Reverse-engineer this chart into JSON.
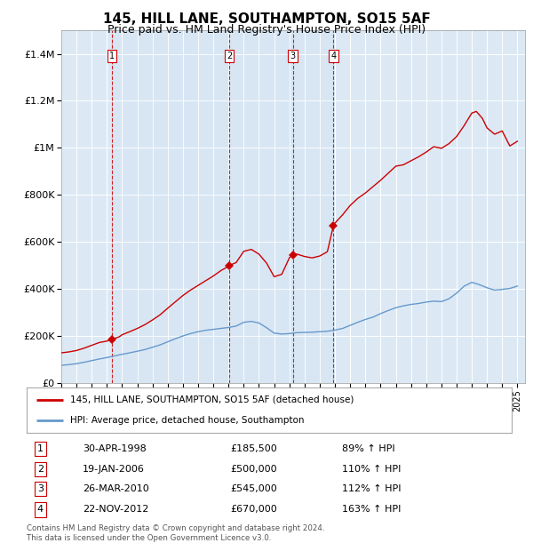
{
  "title": "145, HILL LANE, SOUTHAMPTON, SO15 5AF",
  "subtitle": "Price paid vs. HM Land Registry's House Price Index (HPI)",
  "title_fontsize": 11,
  "subtitle_fontsize": 9,
  "background_color": "#ffffff",
  "plot_bg_color": "#dce9f5",
  "grid_color": "#ffffff",
  "red_line_color": "#cc0000",
  "blue_line_color": "#6699cc",
  "sale_marker_color": "#cc0000",
  "dashed_line_color": "#cc0000",
  "ylim": [
    0,
    1500000
  ],
  "yticks": [
    0,
    200000,
    400000,
    600000,
    800000,
    1000000,
    1200000,
    1400000
  ],
  "ytick_labels": [
    "£0",
    "£200K",
    "£400K",
    "£600K",
    "£800K",
    "£1M",
    "£1.2M",
    "£1.4M"
  ],
  "sales": [
    {
      "num": 1,
      "date": "30-APR-1998",
      "price": 185500,
      "pct": "89%",
      "x_year": 1998.33
    },
    {
      "num": 2,
      "date": "19-JAN-2006",
      "price": 500000,
      "pct": "110%",
      "x_year": 2006.05
    },
    {
      "num": 3,
      "date": "26-MAR-2010",
      "price": 545000,
      "pct": "112%",
      "x_year": 2010.23
    },
    {
      "num": 4,
      "date": "22-NOV-2012",
      "price": 670000,
      "pct": "163%",
      "x_year": 2012.9
    }
  ],
  "legend_red_label": "145, HILL LANE, SOUTHAMPTON, SO15 5AF (detached house)",
  "legend_blue_label": "HPI: Average price, detached house, Southampton",
  "footnote": "Contains HM Land Registry data © Crown copyright and database right 2024.\nThis data is licensed under the Open Government Licence v3.0.",
  "xmin": 1995,
  "xmax": 2025.5
}
